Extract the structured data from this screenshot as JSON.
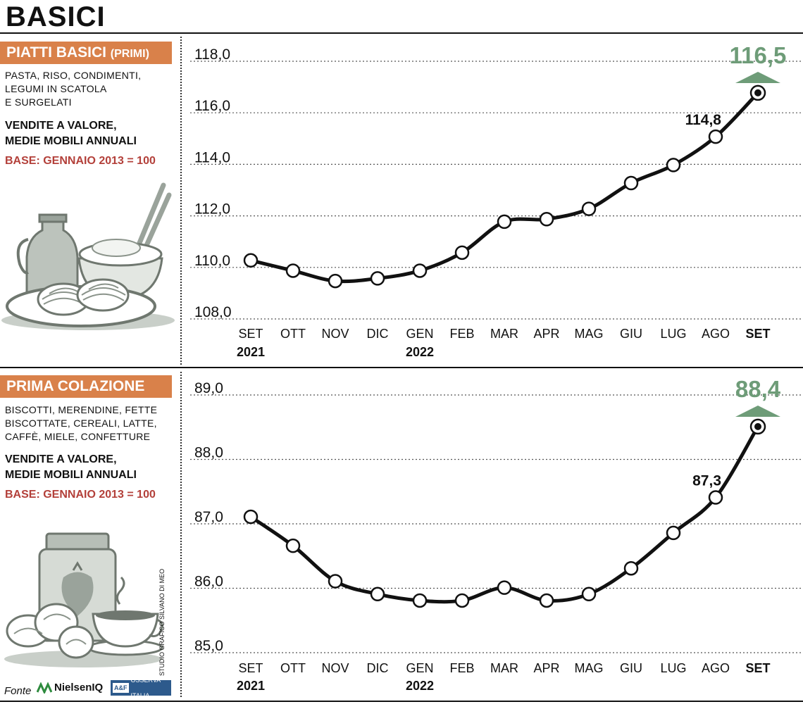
{
  "title": "BASICI",
  "panels": [
    {
      "tag": "PIATTI BASICI",
      "tag_small": "(PRIMI)",
      "desc": [
        "PASTA, RISO, CONDIMENTI,",
        "LEGUMI IN SCATOLA",
        "E SURGELATI"
      ],
      "measure": [
        "VENDITE A VALORE,",
        "MEDIE MOBILI ANNUALI"
      ],
      "base": "BASE: GENNAIO 2013 = 100"
    },
    {
      "tag": "PRIMA COLAZIONE",
      "tag_small": "",
      "desc": [
        "BISCOTTI, MERENDINE, FETTE",
        "BISCOTTATE, CEREALI, LATTE,",
        "CAFFÈ, MIELE, CONFETTURE"
      ],
      "measure": [
        "VENDITE A VALORE,",
        "MEDIE MOBILI ANNUALI"
      ],
      "base": "BASE: GENNAIO 2013 = 100"
    }
  ],
  "chart_data": [
    {
      "type": "line",
      "categories": [
        "SET",
        "OTT",
        "NOV",
        "DIC",
        "GEN",
        "FEB",
        "MAR",
        "APR",
        "MAG",
        "GIU",
        "LUG",
        "AGO",
        "SET"
      ],
      "year_labels": [
        {
          "index": 0,
          "text": "2021"
        },
        {
          "index": 4,
          "text": "2022"
        }
      ],
      "values": [
        110.0,
        109.6,
        109.2,
        109.3,
        109.6,
        110.3,
        111.5,
        111.6,
        112.0,
        113.0,
        113.7,
        114.8,
        116.5
      ],
      "ylim": [
        108.0,
        118.0
      ],
      "yticks": [
        "118,0",
        "116,0",
        "114,0",
        "112,0",
        "110,0",
        "108,0"
      ],
      "ytick_values": [
        118,
        116,
        114,
        112,
        110,
        108
      ],
      "labels": [
        {
          "index": 11,
          "text": "114,8"
        }
      ],
      "highlight": {
        "index": 12,
        "text": "116,5"
      },
      "grid": "dotted horizontal",
      "colors": {
        "line": "#111111",
        "highlight": "#6e9c78"
      }
    },
    {
      "type": "line",
      "categories": [
        "SET",
        "OTT",
        "NOV",
        "DIC",
        "GEN",
        "FEB",
        "MAR",
        "APR",
        "MAG",
        "GIU",
        "LUG",
        "AGO",
        "SET"
      ],
      "year_labels": [
        {
          "index": 0,
          "text": "2021"
        },
        {
          "index": 4,
          "text": "2022"
        }
      ],
      "values": [
        87.0,
        86.55,
        86.0,
        85.8,
        85.7,
        85.7,
        85.9,
        85.7,
        85.8,
        86.2,
        86.75,
        87.3,
        88.4
      ],
      "ylim": [
        85.0,
        89.0
      ],
      "yticks": [
        "89,0",
        "88,0",
        "87,0",
        "86,0",
        "85,0"
      ],
      "ytick_values": [
        89,
        88,
        87,
        86,
        85
      ],
      "labels": [
        {
          "index": 11,
          "text": "87,3"
        }
      ],
      "highlight": {
        "index": 12,
        "text": "88,4"
      },
      "grid": "dotted horizontal",
      "colors": {
        "line": "#111111",
        "highlight": "#6e9c78"
      }
    }
  ],
  "credit": "STUDIO GRAFICO SILVANO DI MEO",
  "source": {
    "label": "Fonte",
    "logo1": "NielsenIQ",
    "logo2_mark": "A&F",
    "logo2": "OSSERVA ITALIA"
  }
}
